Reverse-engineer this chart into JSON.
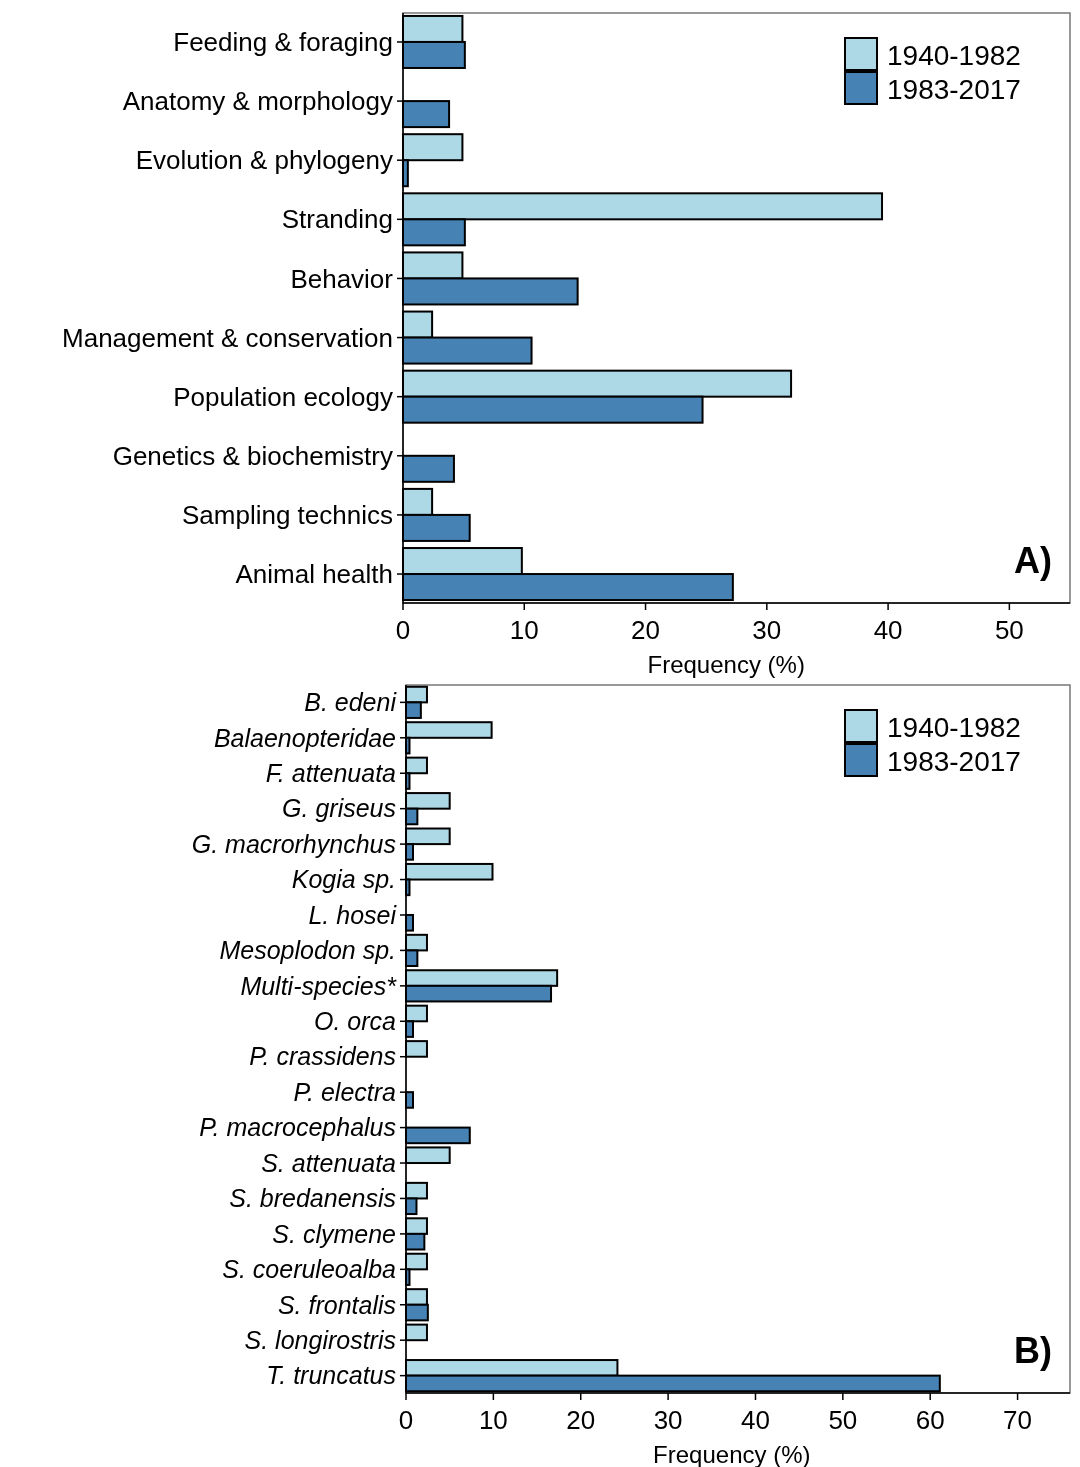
{
  "chart_data": [
    {
      "type": "bar",
      "orientation": "horizontal",
      "categories": [
        "Feeding & foraging",
        "Anatomy & morphology",
        "Evolution & phylogeny",
        "Stranding",
        "Behavior",
        "Management & conservation",
        "Population ecology",
        "Genetics & biochemistry",
        "Sampling technics",
        "Animal health"
      ],
      "series": [
        {
          "name": "1940-1982",
          "color": "#add8e6",
          "values": [
            4.9,
            0,
            4.9,
            39.5,
            4.9,
            2.4,
            32.0,
            0,
            2.4,
            9.8
          ]
        },
        {
          "name": "1983-2017",
          "color": "#4682b4",
          "values": [
            5.1,
            3.8,
            0.4,
            5.1,
            14.4,
            10.6,
            24.7,
            4.2,
            5.5,
            27.2
          ]
        }
      ],
      "xlim": [
        0,
        55
      ],
      "xticks": [
        0,
        10,
        20,
        30,
        40,
        50
      ],
      "xlabel": "Frequency (%)",
      "legend": "top right",
      "annotations": [
        "A)"
      ]
    },
    {
      "type": "bar",
      "orientation": "horizontal",
      "categories": [
        "B. edeni",
        "Balaenopteridae",
        "F. attenuata",
        "G. griseus",
        "G. macrorhynchus",
        "Kogia sp.",
        "L. hosei",
        "Mesoplodon sp.",
        "Multi-species*",
        "O. orca",
        "P. crassidens",
        "P. electra",
        "P. macrocephalus",
        "S. attenuata",
        "S. bredanensis",
        "S. clymene",
        "S. coeruleoalba",
        "S. frontalis",
        "S. longirostris",
        "T. truncatus"
      ],
      "series": [
        {
          "name": "1940-1982",
          "color": "#add8e6",
          "values": [
            2.4,
            9.8,
            2.4,
            5.0,
            5.0,
            9.9,
            0,
            2.4,
            17.3,
            2.4,
            2.4,
            0,
            0,
            5.0,
            2.4,
            2.4,
            2.4,
            2.4,
            2.4,
            24.2
          ]
        },
        {
          "name": "1983-2017",
          "color": "#4682b4",
          "values": [
            1.7,
            0.4,
            0.4,
            1.3,
            0.8,
            0.4,
            0.8,
            1.3,
            16.6,
            0.8,
            0,
            0.8,
            7.3,
            0,
            1.2,
            2.1,
            0.4,
            2.5,
            0,
            61.1
          ]
        }
      ],
      "xlim": [
        0,
        76
      ],
      "xticks": [
        0,
        10,
        20,
        30,
        40,
        50,
        60,
        70
      ],
      "xlabel": "Frequency (%)",
      "legend": "top right",
      "annotations": [
        "B)"
      ]
    }
  ]
}
